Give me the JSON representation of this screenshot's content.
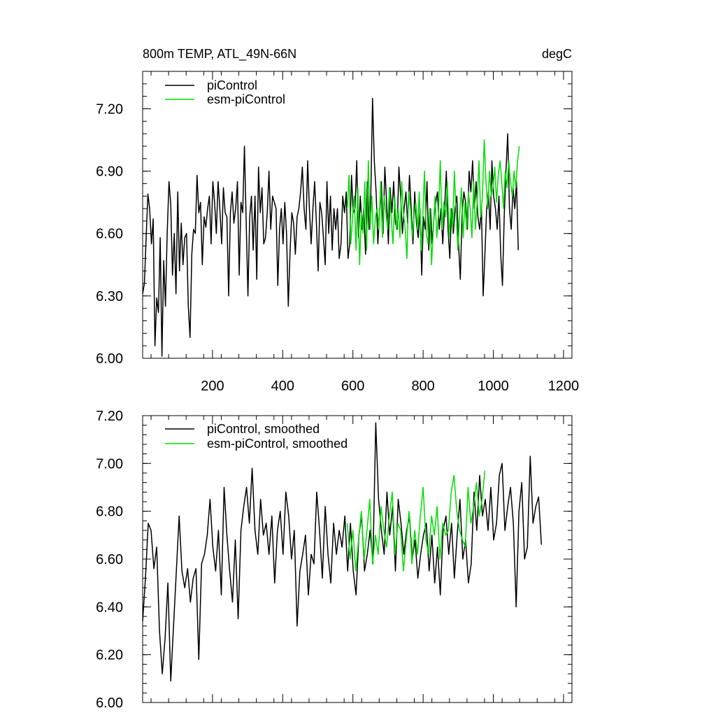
{
  "chart_data": [
    {
      "type": "line",
      "title": "800m TEMP, ATL_49N-66N",
      "units": "degC",
      "xlim": [
        1,
        1224
      ],
      "ylim": [
        6.0,
        7.38
      ],
      "yticks": [
        6.0,
        6.3,
        6.6,
        6.9,
        7.2
      ],
      "ytick_labels": [
        "6.00",
        "6.30",
        "6.60",
        "6.90",
        "7.20"
      ],
      "xticks": [
        200,
        400,
        600,
        800,
        1000,
        1200
      ],
      "xtick_labels": [
        "200",
        "400",
        "600",
        "800",
        "1000",
        "1200"
      ],
      "colors": {
        "piControl": "#000000",
        "esm-piControl": "#00dd00"
      },
      "series": [
        {
          "name": "piControl",
          "x_start": 1,
          "x_step": 5,
          "values": [
            6.31,
            6.36,
            6.58,
            6.79,
            6.72,
            6.55,
            6.67,
            6.06,
            6.29,
            6.22,
            6.58,
            6.01,
            6.47,
            6.25,
            6.6,
            6.85,
            6.74,
            6.4,
            6.6,
            6.31,
            6.8,
            6.42,
            6.65,
            6.45,
            6.58,
            6.6,
            6.25,
            6.1,
            6.5,
            6.62,
            6.6,
            6.88,
            6.7,
            6.75,
            6.45,
            6.68,
            6.63,
            6.72,
            6.78,
            6.55,
            6.85,
            6.75,
            6.6,
            6.85,
            6.72,
            6.55,
            6.82,
            6.7,
            6.68,
            6.3,
            6.7,
            6.8,
            6.65,
            6.72,
            6.85,
            6.4,
            6.75,
            6.7,
            7.02,
            6.65,
            6.3,
            6.68,
            6.78,
            6.52,
            6.78,
            6.38,
            6.92,
            6.7,
            6.82,
            6.55,
            6.58,
            6.7,
            6.9,
            6.62,
            6.78,
            6.75,
            6.72,
            6.35,
            6.62,
            6.72,
            6.55,
            6.75,
            6.6,
            6.25,
            6.52,
            6.7,
            6.65,
            6.5,
            6.68,
            6.72,
            6.8,
            6.92,
            6.72,
            6.62,
            6.95,
            6.72,
            6.55,
            6.72,
            6.85,
            6.65,
            6.42,
            6.75,
            6.7,
            6.58,
            6.45,
            6.85,
            6.6,
            6.78,
            6.52,
            6.72,
            6.62,
            6.72,
            6.48,
            6.55,
            6.78,
            6.7,
            6.8,
            6.48,
            6.55,
            6.88,
            6.7,
            6.72,
            6.95,
            6.58,
            6.78,
            6.62,
            6.72,
            6.5,
            6.85,
            6.62,
            6.78,
            7.25,
            6.95,
            6.8,
            6.55,
            6.7,
            6.85,
            6.6,
            6.92,
            6.75,
            6.55,
            6.82,
            6.7,
            6.85,
            6.65,
            6.62,
            6.92,
            6.78,
            6.6,
            6.72,
            6.8,
            6.65,
            6.88,
            6.72,
            6.55,
            6.8,
            6.65,
            6.58,
            6.72,
            6.4,
            6.68,
            6.62,
            6.85,
            6.52,
            6.72,
            6.55,
            6.68,
            6.75,
            6.8,
            6.62,
            6.72,
            6.55,
            6.72,
            6.9,
            6.62,
            6.48,
            6.72,
            6.6,
            6.72,
            6.78,
            6.55,
            6.38,
            6.7,
            6.8,
            6.75,
            6.62,
            6.9,
            6.8,
            6.95,
            6.72,
            6.85,
            6.68,
            6.62,
            6.72,
            6.3,
            6.5,
            6.72,
            6.8,
            6.62,
            6.95,
            6.78,
            6.72,
            6.62,
            6.78,
            6.5,
            6.35,
            6.68,
            6.9,
            7.08,
            6.72,
            6.62,
            6.82,
            6.72,
            6.85,
            6.52
          ]
        },
        {
          "name": "esm-piControl",
          "x_start": 584,
          "x_step": 5,
          "values": [
            6.72,
            6.88,
            6.55,
            6.68,
            6.78,
            6.52,
            6.82,
            6.45,
            6.7,
            6.6,
            6.85,
            6.52,
            6.95,
            6.62,
            6.78,
            6.55,
            6.68,
            6.72,
            6.62,
            6.85,
            6.58,
            6.78,
            6.7,
            6.62,
            6.82,
            6.68,
            6.55,
            6.78,
            6.62,
            6.72,
            6.58,
            6.85,
            6.7,
            6.62,
            6.48,
            6.8,
            6.72,
            6.58,
            6.68,
            6.75,
            6.62,
            6.8,
            6.52,
            6.68,
            6.9,
            6.6,
            6.55,
            6.72,
            6.45,
            6.62,
            6.78,
            6.58,
            6.7,
            6.95,
            6.62,
            6.75,
            6.68,
            6.85,
            6.58,
            6.72,
            6.62,
            6.9,
            6.7,
            6.52,
            6.68,
            6.82,
            6.58,
            6.75,
            6.62,
            6.8,
            6.72,
            6.58,
            6.85,
            6.62,
            6.75,
            6.95,
            6.68,
            6.78,
            7.05,
            6.85,
            6.72,
            6.9,
            6.78,
            6.82,
            6.92,
            6.75,
            6.88,
            6.95,
            6.85,
            6.72,
            6.9,
            6.82,
            6.95,
            6.85,
            6.78,
            6.9,
            6.82,
            6.95,
            7.02
          ]
        }
      ]
    },
    {
      "type": "line",
      "xlim": [
        1,
        1224
      ],
      "ylim": [
        6.0,
        7.2
      ],
      "yticks": [
        6.0,
        6.2,
        6.4,
        6.6,
        6.8,
        7.0,
        7.2
      ],
      "ytick_labels": [
        "6.00",
        "6.20",
        "6.40",
        "6.60",
        "6.80",
        "7.00",
        "7.20"
      ],
      "xticks": [
        200,
        400,
        600,
        800,
        1000,
        1200
      ],
      "colors": {
        "piControl, smoothed": "#000000",
        "esm-piControl, smoothed": "#00dd00"
      },
      "series": [
        {
          "name": "piControl, smoothed",
          "x_start": 1,
          "x_step": 8,
          "values": [
            6.34,
            6.52,
            6.75,
            6.72,
            6.56,
            6.65,
            6.3,
            6.12,
            6.27,
            6.5,
            6.09,
            6.32,
            6.55,
            6.78,
            6.55,
            6.48,
            6.56,
            6.42,
            6.52,
            6.56,
            6.18,
            6.58,
            6.62,
            6.7,
            6.85,
            6.65,
            6.55,
            6.72,
            6.45,
            6.9,
            6.7,
            6.55,
            6.42,
            6.68,
            6.35,
            6.72,
            6.82,
            6.9,
            6.75,
            6.98,
            6.72,
            6.62,
            6.85,
            6.7,
            6.75,
            6.62,
            6.78,
            6.5,
            6.72,
            6.8,
            6.62,
            6.88,
            6.78,
            6.6,
            6.72,
            6.32,
            6.55,
            6.62,
            6.7,
            6.45,
            6.62,
            6.58,
            6.88,
            6.72,
            6.52,
            6.82,
            6.62,
            6.5,
            6.75,
            6.62,
            6.72,
            6.65,
            6.78,
            6.55,
            6.75,
            6.55,
            6.45,
            6.7,
            6.78,
            6.55,
            6.62,
            6.72,
            6.58,
            7.17,
            6.85,
            6.72,
            6.62,
            6.88,
            6.7,
            6.82,
            6.55,
            6.85,
            6.75,
            6.62,
            6.72,
            6.78,
            6.6,
            6.68,
            6.52,
            6.62,
            6.7,
            6.75,
            6.55,
            6.7,
            6.5,
            6.65,
            6.45,
            6.72,
            6.78,
            6.62,
            6.75,
            6.52,
            6.7,
            6.85,
            6.6,
            6.68,
            6.5,
            6.58,
            6.88,
            6.72,
            6.95,
            6.78,
            6.85,
            6.72,
            6.9,
            6.68,
            6.75,
            6.95,
            7.0,
            6.72,
            6.82,
            6.9,
            6.75,
            6.4,
            6.8,
            6.92,
            6.6,
            6.65,
            7.03,
            6.75,
            6.82,
            6.86,
            6.66
          ]
        },
        {
          "name": "esm-piControl, smoothed",
          "x_start": 584,
          "x_step": 8,
          "values": [
            6.75,
            6.6,
            6.72,
            6.55,
            6.68,
            6.8,
            6.6,
            6.72,
            6.85,
            6.58,
            6.7,
            6.62,
            6.82,
            6.72,
            6.65,
            6.78,
            6.88,
            6.62,
            6.75,
            6.72,
            6.55,
            6.68,
            6.8,
            6.58,
            6.72,
            6.62,
            6.78,
            6.9,
            6.68,
            6.62,
            6.78,
            6.7,
            6.82,
            6.6,
            6.75,
            6.7,
            6.72,
            6.88,
            6.95,
            6.8,
            6.72,
            6.68,
            6.65,
            6.9,
            6.75,
            6.82,
            6.92,
            6.78,
            6.85,
            6.97
          ]
        }
      ]
    }
  ]
}
